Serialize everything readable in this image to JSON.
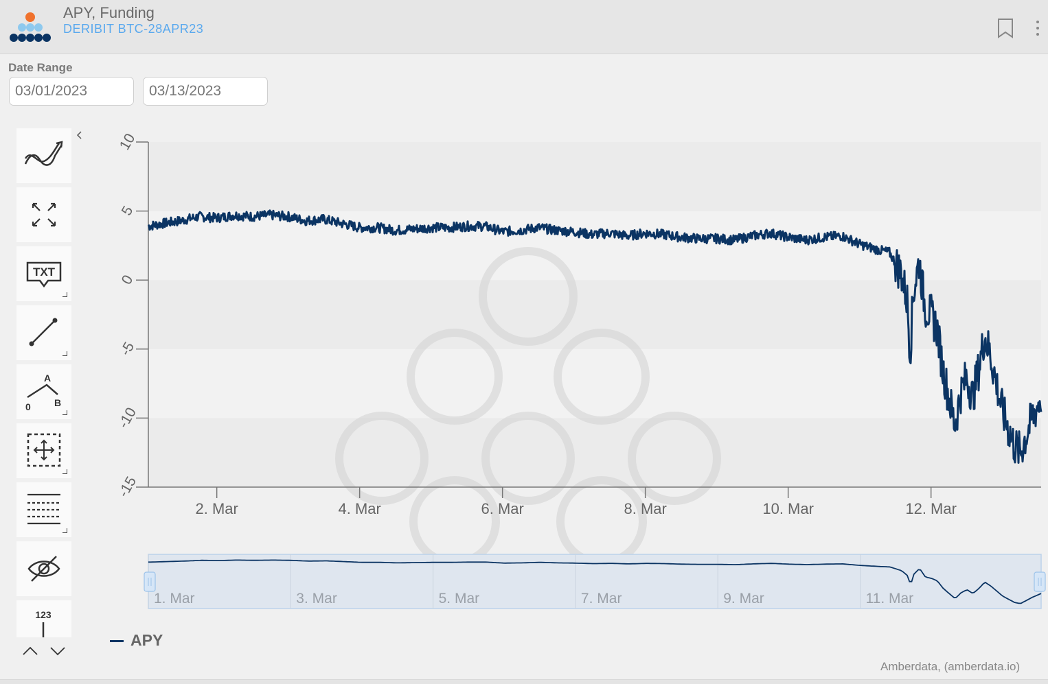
{
  "header": {
    "title": "APY, Funding",
    "subtitle": "DERIBIT BTC-28APR23"
  },
  "date_range": {
    "label": "Date Range",
    "start": "03/01/2023",
    "end": "03/13/2023"
  },
  "toolbar": {
    "text_tool_label": "TXT",
    "measure_label": "123",
    "fib_labels": {
      "a": "A",
      "b": "B",
      "zero": "0"
    },
    "tools": [
      "indicators-icon",
      "fullscreen-icon",
      "annotation-icon",
      "line-icon",
      "fibonacci-icon",
      "pan-icon",
      "grid-lines-icon",
      "hide-icon",
      "measure-icon"
    ]
  },
  "chart_data": {
    "type": "line",
    "title": "",
    "xlabel": "",
    "ylabel": "",
    "ylim": [
      -15,
      10
    ],
    "y_ticks": [
      10,
      5,
      0,
      -5,
      -10,
      -15
    ],
    "xlim": [
      "2023-03-01T01:00",
      "2023-03-13T13:00"
    ],
    "x_tick_labels": [
      {
        "date": "2023-03-02",
        "label": "2. Mar"
      },
      {
        "date": "2023-03-04",
        "label": "4. Mar"
      },
      {
        "date": "2023-03-06",
        "label": "6. Mar"
      },
      {
        "date": "2023-03-08",
        "label": "8. Mar"
      },
      {
        "date": "2023-03-10",
        "label": "10. Mar"
      },
      {
        "date": "2023-03-12",
        "label": "12. Mar"
      }
    ],
    "grid": "horizontal bands",
    "legend_position": "bottom-left",
    "series": [
      {
        "name": "APY",
        "color": "#0b3463",
        "points": [
          [
            "2023-03-01T01:00",
            3.9
          ],
          [
            "2023-03-01T06:00",
            4.1
          ],
          [
            "2023-03-01T12:00",
            4.3
          ],
          [
            "2023-03-01T18:00",
            4.6
          ],
          [
            "2023-03-02T00:00",
            4.5
          ],
          [
            "2023-03-02T06:00",
            4.7
          ],
          [
            "2023-03-02T12:00",
            4.6
          ],
          [
            "2023-03-02T18:00",
            4.7
          ],
          [
            "2023-03-03T00:00",
            4.6
          ],
          [
            "2023-03-03T06:00",
            4.3
          ],
          [
            "2023-03-03T12:00",
            4.4
          ],
          [
            "2023-03-03T18:00",
            4.1
          ],
          [
            "2023-03-04T00:00",
            3.8
          ],
          [
            "2023-03-04T06:00",
            3.8
          ],
          [
            "2023-03-04T12:00",
            3.6
          ],
          [
            "2023-03-04T18:00",
            3.7
          ],
          [
            "2023-03-05T00:00",
            3.8
          ],
          [
            "2023-03-05T06:00",
            3.8
          ],
          [
            "2023-03-05T12:00",
            3.9
          ],
          [
            "2023-03-05T18:00",
            3.9
          ],
          [
            "2023-03-06T00:00",
            3.5
          ],
          [
            "2023-03-06T06:00",
            3.6
          ],
          [
            "2023-03-06T12:00",
            3.8
          ],
          [
            "2023-03-06T18:00",
            3.6
          ],
          [
            "2023-03-07T00:00",
            3.5
          ],
          [
            "2023-03-07T06:00",
            3.3
          ],
          [
            "2023-03-07T12:00",
            3.4
          ],
          [
            "2023-03-07T18:00",
            3.2
          ],
          [
            "2023-03-08T00:00",
            3.4
          ],
          [
            "2023-03-08T06:00",
            3.3
          ],
          [
            "2023-03-08T12:00",
            3.1
          ],
          [
            "2023-03-08T18:00",
            3.0
          ],
          [
            "2023-03-09T00:00",
            3.0
          ],
          [
            "2023-03-09T06:00",
            2.9
          ],
          [
            "2023-03-09T12:00",
            3.2
          ],
          [
            "2023-03-09T18:00",
            3.4
          ],
          [
            "2023-03-10T00:00",
            3.1
          ],
          [
            "2023-03-10T06:00",
            2.9
          ],
          [
            "2023-03-10T12:00",
            3.1
          ],
          [
            "2023-03-10T18:00",
            3.2
          ],
          [
            "2023-03-11T00:00",
            2.6
          ],
          [
            "2023-03-11T06:00",
            2.2
          ],
          [
            "2023-03-11T10:00",
            2.0
          ],
          [
            "2023-03-11T14:00",
            0.5
          ],
          [
            "2023-03-11T16:00",
            -1.5
          ],
          [
            "2023-03-11T17:00",
            -5.3
          ],
          [
            "2023-03-11T18:00",
            -1.0
          ],
          [
            "2023-03-11T20:00",
            1.4
          ],
          [
            "2023-03-11T22:00",
            -2.0
          ],
          [
            "2023-03-12T00:00",
            -2.5
          ],
          [
            "2023-03-12T02:00",
            -3.5
          ],
          [
            "2023-03-12T04:00",
            -6.5
          ],
          [
            "2023-03-12T06:00",
            -8.5
          ],
          [
            "2023-03-12T08:00",
            -10.5
          ],
          [
            "2023-03-12T10:00",
            -8.2
          ],
          [
            "2023-03-12T12:00",
            -7.0
          ],
          [
            "2023-03-12T14:00",
            -8.5
          ],
          [
            "2023-03-12T16:00",
            -6.5
          ],
          [
            "2023-03-12T18:00",
            -4.0
          ],
          [
            "2023-03-12T20:00",
            -5.5
          ],
          [
            "2023-03-12T22:00",
            -7.5
          ],
          [
            "2023-03-13T00:00",
            -9.5
          ],
          [
            "2023-03-13T04:00",
            -12.0
          ],
          [
            "2023-03-13T06:00",
            -12.5
          ],
          [
            "2023-03-13T10:00",
            -10.0
          ],
          [
            "2023-03-13T13:00",
            -8.5
          ]
        ]
      }
    ],
    "navigator": {
      "x_tick_labels": [
        {
          "date": "2023-03-01",
          "label": "1. Mar"
        },
        {
          "date": "2023-03-03",
          "label": "3. Mar"
        },
        {
          "date": "2023-03-05",
          "label": "5. Mar"
        },
        {
          "date": "2023-03-07",
          "label": "7. Mar"
        },
        {
          "date": "2023-03-09",
          "label": "9. Mar"
        },
        {
          "date": "2023-03-11",
          "label": "11. Mar"
        }
      ]
    },
    "credits": "Amberdata, (amberdata.io)"
  }
}
